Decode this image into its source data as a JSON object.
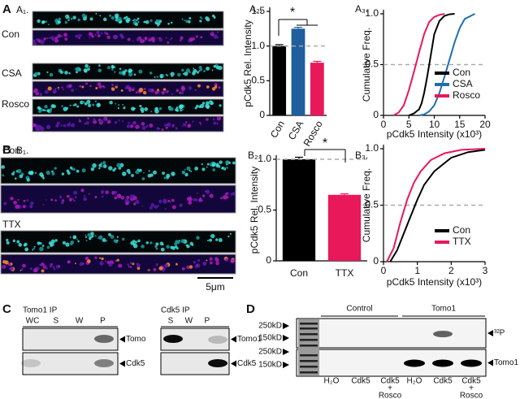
{
  "panel_letters": [
    "A",
    "B",
    "C",
    "D"
  ],
  "images": [
    {
      "label": "A₁.",
      "conditions": [
        "Con",
        "CSA",
        "Rosco"
      ]
    },
    {
      "label": "B₁.",
      "conditions": [
        "Con",
        "TTX"
      ],
      "scale_bar": "5μm"
    }
  ],
  "chart_data": [
    {
      "type": "bar",
      "label": "A₂.",
      "y_label": "pCdk5 Rel. Intensity",
      "categories": [
        "Con",
        "CSA",
        "Rosco"
      ],
      "values": [
        1.0,
        1.25,
        0.76
      ],
      "errors": [
        0.02,
        0.02,
        0.02
      ],
      "colors": [
        "#000000",
        "#1f5f9e",
        "#e8185b"
      ],
      "ylim": [
        0,
        1.5
      ],
      "yticks": [
        0,
        0.5,
        {
          "value": 1,
          "label": "1.0"
        },
        1.5
      ],
      "reference_line": 1,
      "annotation": "*"
    },
    {
      "type": "line",
      "label": "A₃.",
      "x_label": "pCdk5 Intensity (x10³)",
      "y_label": "Cumulative Freq.",
      "series": [
        {
          "name": "Con",
          "color": "#000000",
          "x": [
            5,
            6,
            7,
            7.5,
            8,
            8.5,
            9,
            9.5,
            10,
            11,
            12,
            13,
            14
          ],
          "values": [
            0,
            0.02,
            0.06,
            0.12,
            0.22,
            0.35,
            0.5,
            0.65,
            0.8,
            0.93,
            0.98,
            0.995,
            1.0
          ]
        },
        {
          "name": "CSA",
          "color": "#1f6fb0",
          "x": [
            7,
            8,
            9,
            10,
            11,
            12,
            13,
            14,
            15,
            16,
            18
          ],
          "values": [
            0,
            0.01,
            0.04,
            0.1,
            0.22,
            0.38,
            0.55,
            0.72,
            0.86,
            0.95,
            1.0
          ]
        },
        {
          "name": "Rosco",
          "color": "#e8185b",
          "x": [
            2,
            3,
            4,
            5,
            6,
            7,
            8,
            9,
            10,
            11,
            12
          ],
          "values": [
            0,
            0.03,
            0.1,
            0.25,
            0.43,
            0.62,
            0.8,
            0.92,
            0.97,
            0.99,
            1.0
          ]
        }
      ],
      "xlim": [
        0,
        20
      ],
      "xticks": [
        0,
        5,
        10,
        15,
        20
      ],
      "ylim": [
        0,
        1
      ],
      "yticks": [
        0,
        0.5,
        {
          "value": 1,
          "label": "1.0"
        }
      ],
      "reference_line": 0.5,
      "legend": "lower right"
    },
    {
      "type": "bar",
      "label": "B₂.",
      "y_label": "pCdk5 Rel. Intensity",
      "categories": [
        "Con",
        "TTX"
      ],
      "values": [
        1.0,
        0.65
      ],
      "errors": [
        0.02,
        0.01
      ],
      "colors": [
        "#000000",
        "#e8185b"
      ],
      "ylim": [
        0,
        1
      ],
      "yticks": [
        0,
        0.5,
        {
          "value": 1,
          "label": "1.0"
        }
      ],
      "reference_line": 1,
      "annotation": "*"
    },
    {
      "type": "line",
      "label": "B₃.",
      "x_label": "pCdk5 Intensity (x10³)",
      "y_label": "Cumulative Freq.",
      "series": [
        {
          "name": "Con",
          "color": "#000000",
          "x": [
            0.2,
            0.4,
            0.6,
            0.8,
            1.0,
            1.2,
            1.5,
            2,
            2.5,
            3
          ],
          "values": [
            0,
            0.1,
            0.25,
            0.4,
            0.55,
            0.68,
            0.8,
            0.92,
            0.97,
            0.99
          ]
        },
        {
          "name": "TTX",
          "color": "#e8185b",
          "x": [
            0.1,
            0.3,
            0.5,
            0.7,
            0.9,
            1.1,
            1.4,
            1.8,
            2.3,
            3
          ],
          "values": [
            0,
            0.12,
            0.35,
            0.55,
            0.7,
            0.8,
            0.9,
            0.96,
            0.99,
            1.0
          ]
        }
      ],
      "xlim": [
        0,
        3
      ],
      "xticks": [
        0,
        1,
        2,
        3
      ],
      "ylim": [
        0,
        1
      ],
      "yticks": [
        0,
        0.5,
        {
          "value": 1,
          "label": "1.0"
        }
      ],
      "reference_line": 0.5,
      "legend": "lower right"
    }
  ],
  "blots_c": [
    {
      "title": "Tomo1 IP",
      "lanes": [
        "WC",
        "S",
        "W",
        "P"
      ],
      "bands": [
        "Tomo",
        "Cdk5"
      ]
    },
    {
      "title": "Cdk5 IP",
      "lanes": [
        "S",
        "W",
        "P"
      ],
      "bands": [
        "Tomo1",
        "Cdk5"
      ]
    }
  ],
  "blot_d": {
    "groups": [
      "Control",
      "Tomo1"
    ],
    "markers": [
      "250kD",
      "150kD",
      "250kD",
      "150kD"
    ],
    "bands": [
      "³²P",
      "Tomo1"
    ],
    "lanes": [
      [
        "H₂O"
      ],
      [
        "Cdk5"
      ],
      [
        "Cdk5",
        "+",
        "Rosco"
      ],
      [
        "H₂O"
      ],
      [
        "Cdk5"
      ],
      [
        "Cdk5",
        "+",
        "Rosco"
      ]
    ]
  }
}
